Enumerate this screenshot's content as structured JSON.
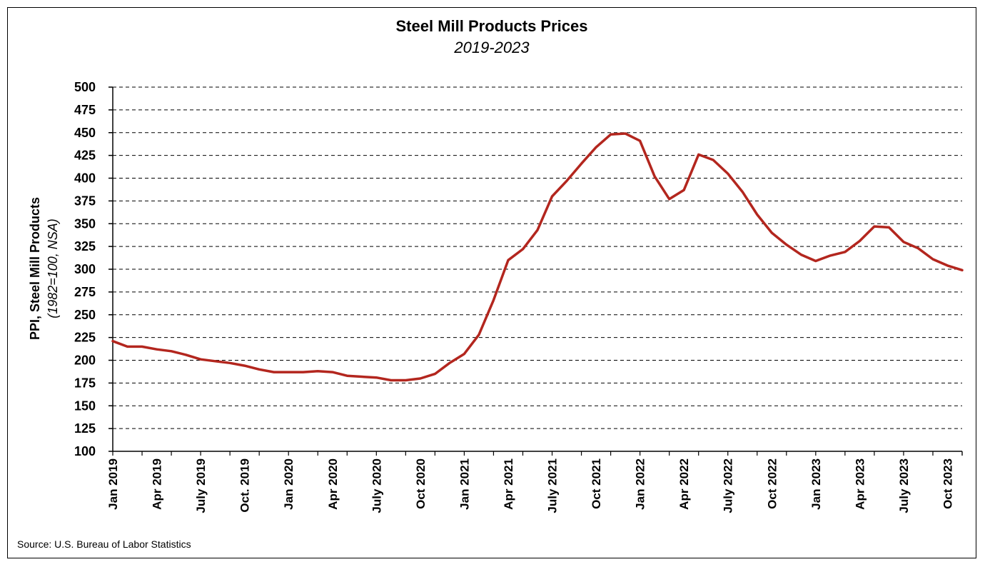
{
  "chart_data": {
    "type": "line",
    "title": "Steel Mill Products Prices",
    "subtitle": "2019-2023",
    "ylabel": "PPI, Steel Mill Products",
    "ylabel_note": "(1982=100, NSA)",
    "xlabel": "",
    "source": "Source: U.S. Bureau of Labor Statistics",
    "ylim": [
      100,
      500
    ],
    "yticks": [
      100,
      125,
      150,
      175,
      200,
      225,
      250,
      275,
      300,
      325,
      350,
      375,
      400,
      425,
      450,
      475,
      500
    ],
    "grid": "horizontal dashed",
    "legend": "none",
    "color": "#b3261e",
    "x_tick_labels": [
      {
        "index": 0,
        "label": "Jan 2019"
      },
      {
        "index": 3,
        "label": "Apr 2019"
      },
      {
        "index": 6,
        "label": "July 2019"
      },
      {
        "index": 9,
        "label": "Oct. 2019"
      },
      {
        "index": 12,
        "label": "Jan 2020"
      },
      {
        "index": 15,
        "label": "Apr 2020"
      },
      {
        "index": 18,
        "label": "July 2020"
      },
      {
        "index": 21,
        "label": "Oct 2020"
      },
      {
        "index": 24,
        "label": "Jan 2021"
      },
      {
        "index": 27,
        "label": "Apr 2021"
      },
      {
        "index": 30,
        "label": "July 2021"
      },
      {
        "index": 33,
        "label": "Oct 2021"
      },
      {
        "index": 36,
        "label": "Jan 2022"
      },
      {
        "index": 39,
        "label": "Apr 2022"
      },
      {
        "index": 42,
        "label": "July 2022"
      },
      {
        "index": 45,
        "label": "Oct 2022"
      },
      {
        "index": 48,
        "label": "Jan 2023"
      },
      {
        "index": 51,
        "label": "Apr 2023"
      },
      {
        "index": 54,
        "label": "July 2023"
      },
      {
        "index": 57,
        "label": "Oct 2023"
      }
    ],
    "series": [
      {
        "values": [
          221,
          215,
          215,
          212,
          210,
          206,
          201,
          199,
          197,
          194,
          190,
          187,
          187,
          187,
          188,
          187,
          183,
          182,
          181,
          178,
          178,
          180,
          185,
          197,
          207,
          228,
          266,
          310,
          322,
          343,
          380,
          397,
          416,
          434,
          448,
          449,
          441,
          402,
          377,
          387,
          426,
          420,
          405,
          385,
          360,
          340,
          327,
          316,
          309,
          315,
          319,
          331,
          347,
          346,
          330,
          323,
          311,
          304,
          299
        ]
      }
    ]
  }
}
